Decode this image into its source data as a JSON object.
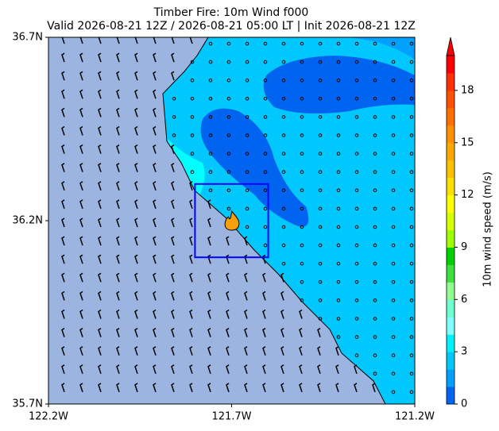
{
  "title": [
    "Timber Fire: 10m Wind f000",
    "Valid 2026-08-21 12Z / 2026-08-21 05:00 LT | Init 2026-08-21 12Z"
  ],
  "map": {
    "xlim": [
      -122.2,
      -121.2
    ],
    "ylim": [
      35.7,
      36.7
    ],
    "xticks": [
      {
        "value": -122.2,
        "label": "122.2W"
      },
      {
        "value": -121.7,
        "label": "121.7W"
      },
      {
        "value": -121.2,
        "label": "121.2W"
      }
    ],
    "yticks": [
      {
        "value": 35.7,
        "label": "35.7N"
      },
      {
        "value": 36.2,
        "label": "36.2N"
      },
      {
        "value": 36.7,
        "label": "36.7N"
      }
    ],
    "box": {
      "lon": [
        -121.8,
        -121.6
      ],
      "lat": [
        36.1,
        36.3
      ],
      "color": "#0000ff"
    },
    "fire": {
      "lon": -121.7,
      "lat": 36.2,
      "color": "#f5a00a"
    }
  },
  "colorbar": {
    "label": "10m wind speed (m/s)",
    "lim": [
      0,
      20
    ],
    "ticks": [
      0,
      3,
      6,
      9,
      12,
      15,
      18
    ],
    "colors": [
      "#0064f0",
      "#00a0ff",
      "#00c8ff",
      "#00f0ff",
      "#80ffff",
      "#70ffd0",
      "#90ff90",
      "#40e040",
      "#00d000",
      "#a0ff00",
      "#d8ff00",
      "#ffff00",
      "#ffe000",
      "#ffc000",
      "#ffa800",
      "#ff9000",
      "#ff7000",
      "#ff5000",
      "#ff3000",
      "#ff0000"
    ]
  }
}
